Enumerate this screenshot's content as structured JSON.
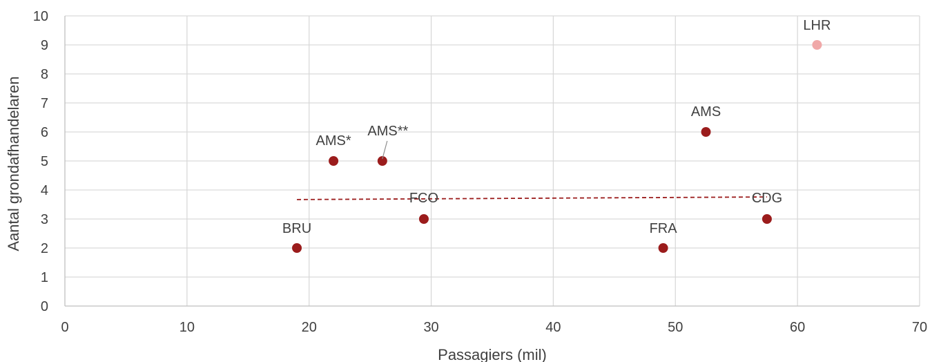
{
  "chart_data": {
    "type": "scatter",
    "xlabel": "Passagiers (mil)",
    "ylabel": "Aantal grondafhandelaren",
    "xlim": [
      0,
      70
    ],
    "ylim": [
      0,
      10
    ],
    "x_ticks": [
      0,
      10,
      20,
      30,
      40,
      50,
      60,
      70
    ],
    "y_ticks": [
      0,
      1,
      2,
      3,
      4,
      5,
      6,
      7,
      8,
      9,
      10
    ],
    "grid": true,
    "points": [
      {
        "label": "BRU",
        "x": 19.0,
        "y": 2,
        "color": "#9b1c1c"
      },
      {
        "label": "AMS*",
        "x": 22.0,
        "y": 5,
        "color": "#9b1c1c"
      },
      {
        "label": "AMS**",
        "x": 26.0,
        "y": 5,
        "color": "#9b1c1c"
      },
      {
        "label": "FCO",
        "x": 29.4,
        "y": 3,
        "color": "#9b1c1c"
      },
      {
        "label": "FRA",
        "x": 49.0,
        "y": 2,
        "color": "#9b1c1c"
      },
      {
        "label": "AMS",
        "x": 52.5,
        "y": 6,
        "color": "#9b1c1c"
      },
      {
        "label": "CDG",
        "x": 57.5,
        "y": 3,
        "color": "#9b1c1c"
      },
      {
        "label": "LHR",
        "x": 61.6,
        "y": 9,
        "color": "#f0a8a8"
      }
    ],
    "trendline": {
      "style": "dashed",
      "color": "#9b1c1c",
      "from": [
        19.0,
        3.67
      ],
      "to": [
        57.5,
        3.76
      ]
    }
  }
}
